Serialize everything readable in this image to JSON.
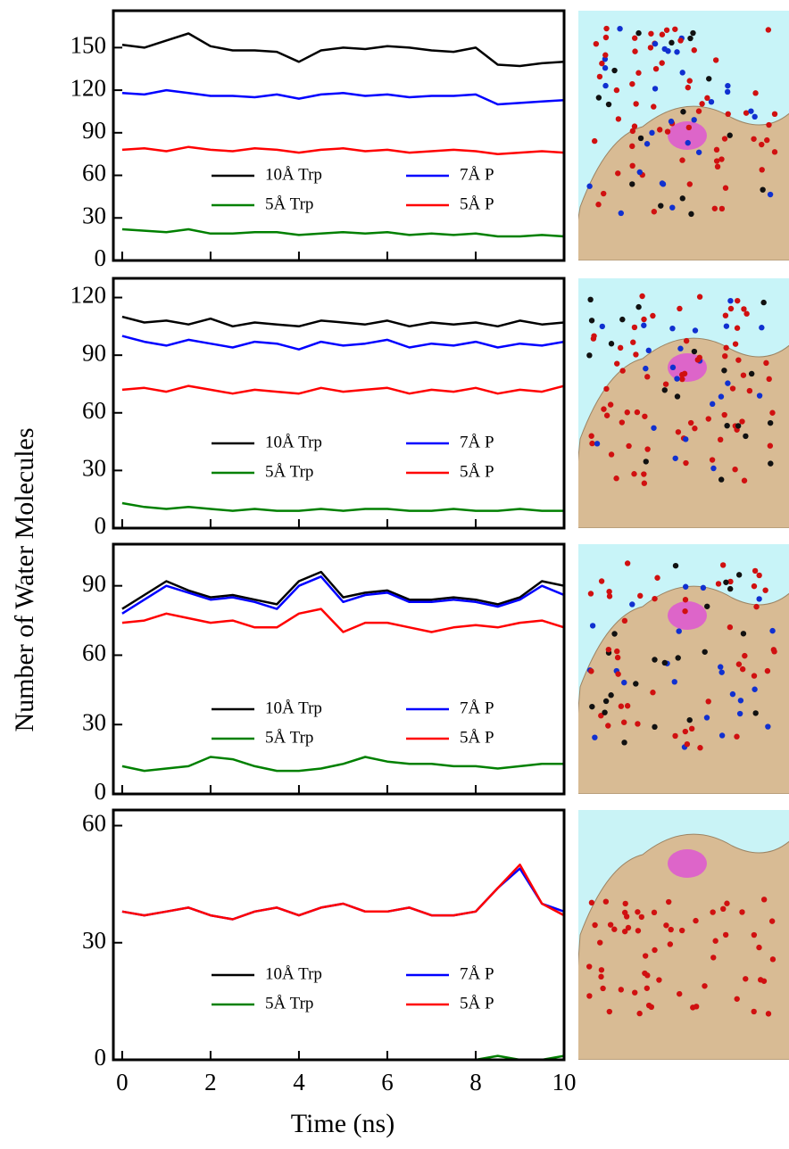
{
  "ylabel": "Number of Water Molecules",
  "xlabel": "Time (ns)",
  "chart_data": [
    {
      "type": "line",
      "xlim": [
        -0.2,
        10
      ],
      "ylim": [
        0,
        176
      ],
      "yticks": [
        0,
        30,
        60,
        90,
        120,
        150
      ],
      "xticks": [
        0,
        2,
        4,
        6,
        8,
        10
      ],
      "x": [
        0,
        0.5,
        1,
        1.5,
        2,
        2.5,
        3,
        3.5,
        4,
        4.5,
        5,
        5.5,
        6,
        6.5,
        7,
        7.5,
        8,
        8.5,
        9,
        9.5,
        10
      ],
      "series": [
        {
          "name": "10Å Trp",
          "color": "#000000",
          "values": [
            152,
            150,
            155,
            160,
            151,
            148,
            148,
            147,
            140,
            148,
            150,
            149,
            151,
            150,
            148,
            147,
            150,
            138,
            137,
            139,
            140
          ]
        },
        {
          "name": "7Å P",
          "color": "#0000ff",
          "values": [
            118,
            117,
            120,
            118,
            116,
            116,
            115,
            117,
            114,
            117,
            118,
            116,
            117,
            115,
            116,
            116,
            117,
            110,
            111,
            112,
            113
          ]
        },
        {
          "name": "5Å Trp",
          "color": "#008000",
          "values": [
            22,
            21,
            20,
            22,
            19,
            19,
            20,
            20,
            18,
            19,
            20,
            19,
            20,
            18,
            19,
            18,
            19,
            17,
            17,
            18,
            17
          ]
        },
        {
          "name": "5Å P",
          "color": "#ff0000",
          "values": [
            78,
            79,
            77,
            80,
            78,
            77,
            79,
            78,
            76,
            78,
            79,
            77,
            78,
            76,
            77,
            78,
            77,
            75,
            76,
            77,
            76
          ]
        }
      ]
    },
    {
      "type": "line",
      "xlim": [
        -0.2,
        10
      ],
      "ylim": [
        0,
        130
      ],
      "yticks": [
        0,
        30,
        60,
        90,
        120
      ],
      "xticks": [
        0,
        2,
        4,
        6,
        8,
        10
      ],
      "x": [
        0,
        0.5,
        1,
        1.5,
        2,
        2.5,
        3,
        3.5,
        4,
        4.5,
        5,
        5.5,
        6,
        6.5,
        7,
        7.5,
        8,
        8.5,
        9,
        9.5,
        10
      ],
      "series": [
        {
          "name": "10Å Trp",
          "color": "#000000",
          "values": [
            110,
            107,
            108,
            106,
            109,
            105,
            107,
            106,
            105,
            108,
            107,
            106,
            108,
            105,
            107,
            106,
            107,
            105,
            108,
            106,
            107
          ]
        },
        {
          "name": "7Å P",
          "color": "#0000ff",
          "values": [
            100,
            97,
            95,
            98,
            96,
            94,
            97,
            96,
            93,
            97,
            95,
            96,
            98,
            94,
            96,
            95,
            97,
            94,
            96,
            95,
            97
          ]
        },
        {
          "name": "5Å Trp",
          "color": "#008000",
          "values": [
            13,
            11,
            10,
            11,
            10,
            9,
            10,
            9,
            9,
            10,
            9,
            10,
            10,
            9,
            9,
            10,
            9,
            9,
            10,
            9,
            9
          ]
        },
        {
          "name": "5Å P",
          "color": "#ff0000",
          "values": [
            72,
            73,
            71,
            74,
            72,
            70,
            72,
            71,
            70,
            73,
            71,
            72,
            73,
            70,
            72,
            71,
            73,
            70,
            72,
            71,
            74
          ]
        }
      ]
    },
    {
      "type": "line",
      "xlim": [
        -0.2,
        10
      ],
      "ylim": [
        0,
        108
      ],
      "yticks": [
        0,
        30,
        60,
        90
      ],
      "xticks": [
        0,
        2,
        4,
        6,
        8,
        10
      ],
      "x": [
        0,
        0.5,
        1,
        1.5,
        2,
        2.5,
        3,
        3.5,
        4,
        4.5,
        5,
        5.5,
        6,
        6.5,
        7,
        7.5,
        8,
        8.5,
        9,
        9.5,
        10
      ],
      "series": [
        {
          "name": "10Å Trp",
          "color": "#000000",
          "values": [
            80,
            86,
            92,
            88,
            85,
            86,
            84,
            82,
            92,
            96,
            85,
            87,
            88,
            84,
            84,
            85,
            84,
            82,
            85,
            92,
            90
          ]
        },
        {
          "name": "7Å P",
          "color": "#0000ff",
          "values": [
            78,
            84,
            90,
            87,
            84,
            85,
            83,
            80,
            90,
            94,
            83,
            86,
            87,
            83,
            83,
            84,
            83,
            81,
            84,
            90,
            86
          ]
        },
        {
          "name": "5Å Trp",
          "color": "#008000",
          "values": [
            12,
            10,
            11,
            12,
            16,
            15,
            12,
            10,
            10,
            11,
            13,
            16,
            14,
            13,
            13,
            12,
            12,
            11,
            12,
            13,
            13
          ]
        },
        {
          "name": "5Å P",
          "color": "#ff0000",
          "values": [
            74,
            75,
            78,
            76,
            74,
            75,
            72,
            72,
            78,
            80,
            70,
            74,
            74,
            72,
            70,
            72,
            73,
            72,
            74,
            75,
            72
          ]
        }
      ]
    },
    {
      "type": "line",
      "xlim": [
        -0.2,
        10
      ],
      "ylim": [
        0,
        64
      ],
      "yticks": [
        0,
        30,
        60
      ],
      "xticks": [
        0,
        2,
        4,
        6,
        8,
        10
      ],
      "xtick_labels": true,
      "x": [
        0,
        0.5,
        1,
        1.5,
        2,
        2.5,
        3,
        3.5,
        4,
        4.5,
        5,
        5.5,
        6,
        6.5,
        7,
        7.5,
        8,
        8.5,
        9,
        9.5,
        10
      ],
      "series": [
        {
          "name": "10Å Trp",
          "color": "#000000",
          "values": [
            0,
            0,
            0,
            0,
            0,
            0,
            0,
            0,
            0,
            0,
            0,
            0,
            0,
            0,
            0,
            0,
            0,
            0,
            0,
            0,
            0
          ]
        },
        {
          "name": "7Å P",
          "color": "#0000ff",
          "values": [
            38,
            37,
            38,
            39,
            37,
            36,
            38,
            39,
            37,
            39,
            40,
            38,
            38,
            39,
            37,
            37,
            38,
            44,
            49,
            40,
            38
          ]
        },
        {
          "name": "5Å Trp",
          "color": "#008000",
          "values": [
            0,
            0,
            0,
            0,
            0,
            0,
            0,
            0,
            0,
            0,
            0,
            0,
            0,
            0,
            0,
            0,
            0,
            1,
            0,
            0,
            1
          ]
        },
        {
          "name": "5Å P",
          "color": "#ff0000",
          "values": [
            38,
            37,
            38,
            39,
            37,
            36,
            38,
            39,
            37,
            39,
            40,
            38,
            38,
            39,
            37,
            37,
            38,
            44,
            50,
            40,
            37
          ]
        }
      ]
    }
  ]
}
